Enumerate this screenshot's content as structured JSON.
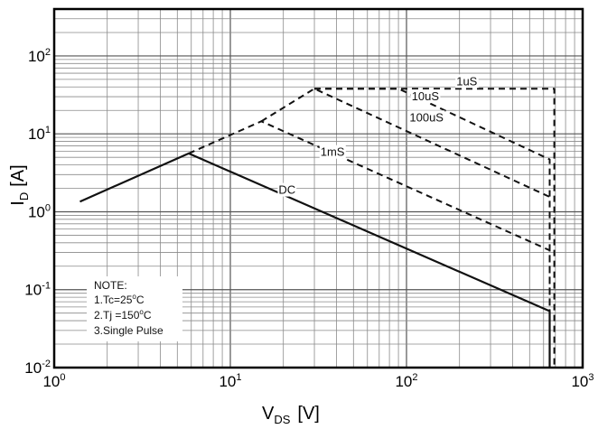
{
  "chart_data": {
    "type": "line",
    "title": "",
    "x_scale": "log",
    "y_scale": "log",
    "xlim": [
      1,
      1000
    ],
    "ylim": [
      0.01,
      400
    ],
    "grid": true,
    "xlabel": {
      "main": "V",
      "sub": "DS",
      "unit": "[V]"
    },
    "ylabel": {
      "main": "I",
      "sub": "D",
      "unit": "[A]"
    },
    "x_ticks": [
      {
        "base": "10",
        "exp": "0",
        "value": 1
      },
      {
        "base": "10",
        "exp": "1",
        "value": 10
      },
      {
        "base": "10",
        "exp": "2",
        "value": 100
      },
      {
        "base": "10",
        "exp": "3",
        "value": 1000
      }
    ],
    "y_ticks": [
      {
        "base": "10",
        "exp": "-2",
        "value": 0.01
      },
      {
        "base": "10",
        "exp": "-1",
        "value": 0.1
      },
      {
        "base": "10",
        "exp": "0",
        "value": 1
      },
      {
        "base": "10",
        "exp": "1",
        "value": 10
      },
      {
        "base": "10",
        "exp": "2",
        "value": 100
      }
    ],
    "series": [
      {
        "name": "DC",
        "style": "solid",
        "x": [
          1.4,
          5.8,
          650,
          650
        ],
        "y": [
          1.35,
          5.6,
          0.053,
          0.01
        ],
        "label_at": [
          21,
          1.7
        ]
      },
      {
        "name": "1mS",
        "style": "dashed",
        "x": [
          5.8,
          15,
          650,
          650
        ],
        "y": [
          5.6,
          14.5,
          0.32,
          0.01
        ],
        "label_at": [
          38,
          5.2
        ]
      },
      {
        "name": "100uS",
        "style": "dashed",
        "x": [
          15,
          30,
          650,
          650
        ],
        "y": [
          14.5,
          38,
          1.55,
          0.01
        ],
        "label_at": [
          130,
          14.5
        ]
      },
      {
        "name": "10uS",
        "style": "dashed",
        "x": [
          30,
          90,
          650,
          650
        ],
        "y": [
          38,
          38,
          4.7,
          0.01
        ],
        "label_at": [
          128,
          27
        ]
      },
      {
        "name": "1uS",
        "style": "dashed",
        "x": [
          30,
          690,
          690
        ],
        "y": [
          38,
          38,
          0.01
        ],
        "label_at": [
          220,
          42
        ]
      }
    ]
  },
  "note": {
    "title": "NOTE:",
    "line1": {
      "prefix": "1.Tc=25",
      "sup": "o",
      "suffix": "C"
    },
    "line2": {
      "prefix": "2.Tj =150",
      "sup": "o",
      "suffix": "C"
    },
    "line3": "3.Single Pulse"
  }
}
